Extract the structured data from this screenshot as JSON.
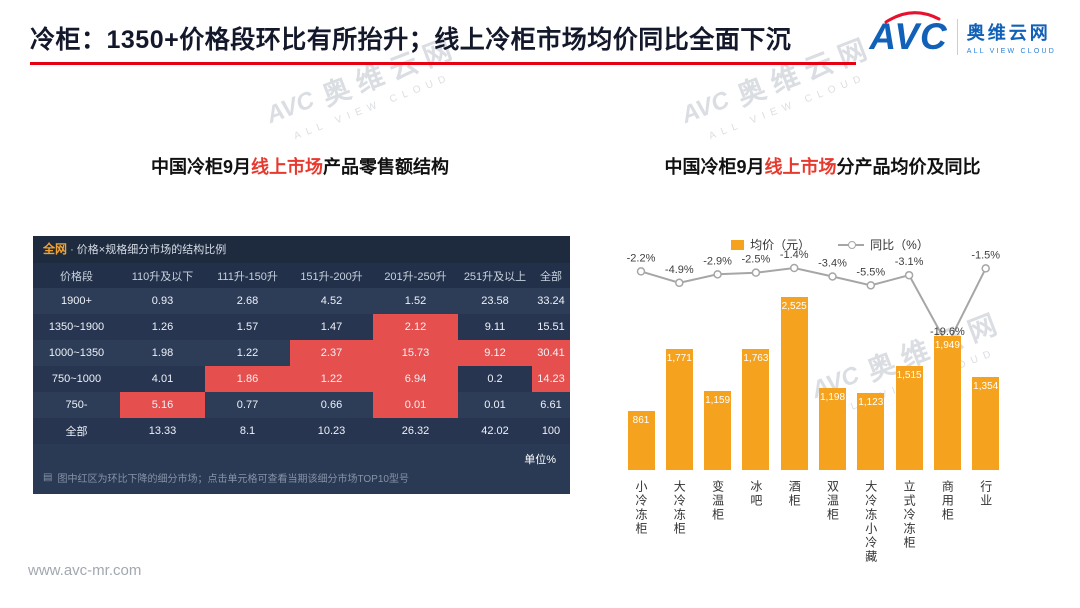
{
  "page": {
    "title": "冷柜：1350+价格段环比有所抬升；线上冷柜市场均价同比全面下沉",
    "footer": "www.avc-mr.com"
  },
  "logo": {
    "brand": "AVC",
    "cn": "奥维云网",
    "en": "ALL VIEW CLOUD"
  },
  "watermark": {
    "brand": "AVC",
    "cn": "奥维云网",
    "en": "ALL VIEW CLOUD"
  },
  "left_panel": {
    "title_parts": [
      {
        "text": "中国冷柜9月",
        "highlight": false
      },
      {
        "text": "线上市场",
        "highlight": true
      },
      {
        "text": "产品零售额结构",
        "highlight": false
      }
    ]
  },
  "right_panel": {
    "title_parts": [
      {
        "text": "中国冷柜9月",
        "highlight": false
      },
      {
        "text": "线上市场",
        "highlight": true
      },
      {
        "text": "分产品均价及同比",
        "highlight": false
      }
    ]
  },
  "chart_data": [
    {
      "type": "table",
      "title_highlight": "全网",
      "title_rest": " · 价格×规格细分市场的结构比例",
      "columns": [
        "价格段",
        "110升及以下",
        "111升-150升",
        "151升-200升",
        "201升-250升",
        "251升及以上",
        "全部"
      ],
      "rows": [
        {
          "label": "1900+",
          "values": [
            "0.93",
            "2.68",
            "4.52",
            "1.52",
            "23.58",
            "33.24"
          ],
          "red": [
            false,
            false,
            false,
            false,
            false,
            false
          ]
        },
        {
          "label": "1350~1900",
          "values": [
            "1.26",
            "1.57",
            "1.47",
            "2.12",
            "9.11",
            "15.51"
          ],
          "red": [
            false,
            false,
            false,
            true,
            false,
            false
          ]
        },
        {
          "label": "1000~1350",
          "values": [
            "1.98",
            "1.22",
            "2.37",
            "15.73",
            "9.12",
            "30.41"
          ],
          "red": [
            false,
            false,
            true,
            true,
            true,
            true
          ]
        },
        {
          "label": "750~1000",
          "values": [
            "4.01",
            "1.86",
            "1.22",
            "6.94",
            "0.2",
            "14.23"
          ],
          "red": [
            false,
            true,
            true,
            true,
            false,
            true
          ]
        },
        {
          "label": "750-",
          "values": [
            "5.16",
            "0.77",
            "0.66",
            "0.01",
            "0.01",
            "6.61"
          ],
          "red": [
            true,
            false,
            false,
            true,
            false,
            false
          ]
        },
        {
          "label": "全部",
          "values": [
            "13.33",
            "8.1",
            "10.23",
            "26.32",
            "42.02",
            "100"
          ],
          "red": [
            false,
            false,
            false,
            false,
            false,
            false
          ]
        }
      ],
      "unit": "单位%",
      "note_icon": "▤",
      "note": "图中红区为环比下降的细分市场；点击单元格可查看当期该细分市场TOP10型号"
    },
    {
      "type": "bar",
      "categories": [
        "小冷冻柜",
        "大冷冻柜",
        "变温柜",
        "冰吧",
        "酒柜",
        "双温柜",
        "大冷冻小冷藏",
        "立式冷冻柜",
        "商用柜",
        "行业"
      ],
      "series": [
        {
          "name": "均价（元）",
          "type": "bar",
          "color": "#f5a31e",
          "values": [
            861,
            1771,
            1159,
            1763,
            2525,
            1198,
            1123,
            1515,
            1949,
            1354
          ],
          "labels": [
            "861",
            "1,771",
            "1,159",
            "1,763",
            "2,525",
            "1,198",
            "1,123",
            "1,515",
            "1,949",
            "1,354"
          ]
        },
        {
          "name": "同比（%）",
          "type": "line",
          "color": "#a6a6a6",
          "values": [
            -2.2,
            -4.9,
            -2.9,
            -2.5,
            -1.4,
            -3.4,
            -5.5,
            -3.1,
            -19.6,
            -1.5
          ],
          "labels": [
            "-2.2%",
            "-4.9%",
            "-2.9%",
            "-2.5%",
            "-1.4%",
            "-3.4%",
            "-5.5%",
            "-3.1%",
            "-19.6%",
            "-1.5%"
          ]
        }
      ],
      "legend_position": "top",
      "grid": false,
      "ylim_bar": [
        0,
        2525
      ],
      "ylim_line": [
        -19.6,
        -1.4
      ]
    }
  ]
}
